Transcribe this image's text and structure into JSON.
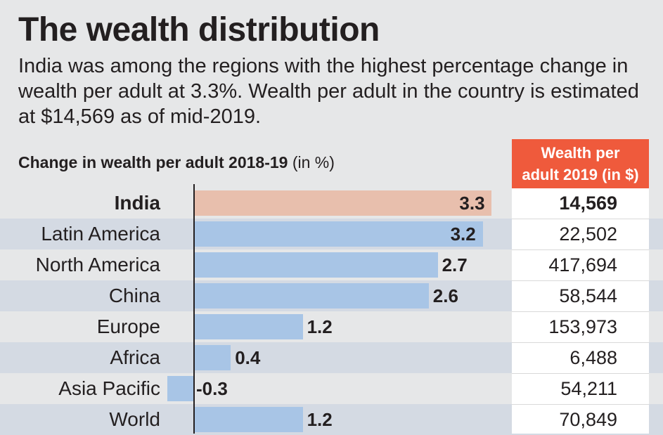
{
  "header": {
    "title": "The wealth distribution",
    "subtitle": "India was among the regions with the highest percentage change in wealth per adult at 3.3%. Wealth per adult in the country is estimated at $14,569 as of mid-2019."
  },
  "chart_data": {
    "type": "bar",
    "orientation": "horizontal",
    "title": "Change in wealth per adult 2018-19",
    "title_unit": "(in %)",
    "categories": [
      "India",
      "Latin America",
      "North America",
      "China",
      "Europe",
      "Africa",
      "Asia Pacific",
      "World"
    ],
    "values": [
      3.3,
      3.2,
      2.7,
      2.6,
      1.2,
      0.4,
      -0.3,
      1.2
    ],
    "value_labels": [
      "3.3",
      "3.2",
      "2.7",
      "2.6",
      "1.2",
      "0.4",
      "-0.3",
      "1.2"
    ],
    "xlim": [
      -0.3,
      3.3
    ],
    "grid": false,
    "highlight_category": "India",
    "colors": {
      "highlight": "#e8bfad",
      "bars": "#a8c5e6",
      "header": "#ef5a3c",
      "row_shade": "#d4dae3",
      "background": "#e6e7e8"
    },
    "table": {
      "header_line1": "Wealth per",
      "header_line2": "adult 2019 (in $)",
      "values": [
        "14,569",
        "22,502",
        "417,694",
        "58,544",
        "153,973",
        "6,488",
        "54,211",
        "70,849"
      ]
    }
  }
}
